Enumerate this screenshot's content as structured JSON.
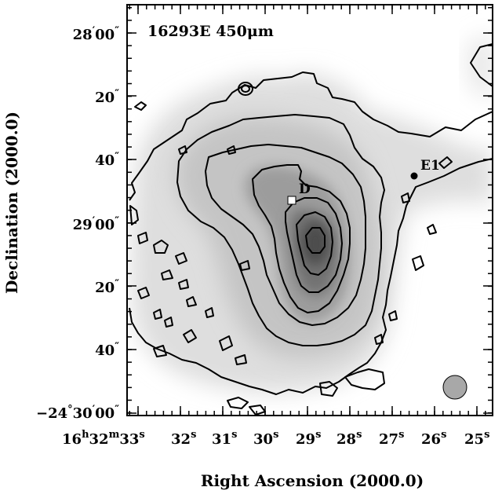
{
  "figure": {
    "title": "16293E 450μm",
    "xlabel": "Right Ascension (2000.0)",
    "ylabel": "Declination (2000.0)"
  },
  "x_ticks": [
    {
      "label": "16h32m33s",
      "main": "16",
      "sup1": "h",
      "mid": "32",
      "sup2": "m",
      "tail": "33",
      "sup3": "s"
    },
    {
      "label": "32s",
      "main": "32",
      "sup": "s"
    },
    {
      "label": "31s",
      "main": "31",
      "sup": "s"
    },
    {
      "label": "30s",
      "main": "30",
      "sup": "s"
    },
    {
      "label": "29s",
      "main": "29",
      "sup": "s"
    },
    {
      "label": "28s",
      "main": "28",
      "sup": "s"
    },
    {
      "label": "27s",
      "main": "27",
      "sup": "s"
    },
    {
      "label": "26s",
      "main": "26",
      "sup": "s"
    },
    {
      "label": "25s",
      "main": "25",
      "sup": "s"
    }
  ],
  "y_ticks": [
    {
      "label": "28'00\"",
      "deg": "",
      "min": "28",
      "sec": "00"
    },
    {
      "label": "20\"",
      "sec": "20"
    },
    {
      "label": "40\"",
      "sec": "40"
    },
    {
      "label": "29'00\"",
      "deg": "",
      "min": "29",
      "sec": "00"
    },
    {
      "label": "20\"",
      "sec": "20"
    },
    {
      "label": "40\"",
      "sec": "40"
    },
    {
      "label": "-24°30'00\"",
      "deg": "−24",
      "min": "30",
      "sec": "00"
    }
  ],
  "annotations": {
    "source_d": "D",
    "source_e1": "E1"
  },
  "colors": {
    "background": "#ffffff",
    "contour": "#000000",
    "beam": "#a8a8a8",
    "marker_d": "#ffffff"
  }
}
